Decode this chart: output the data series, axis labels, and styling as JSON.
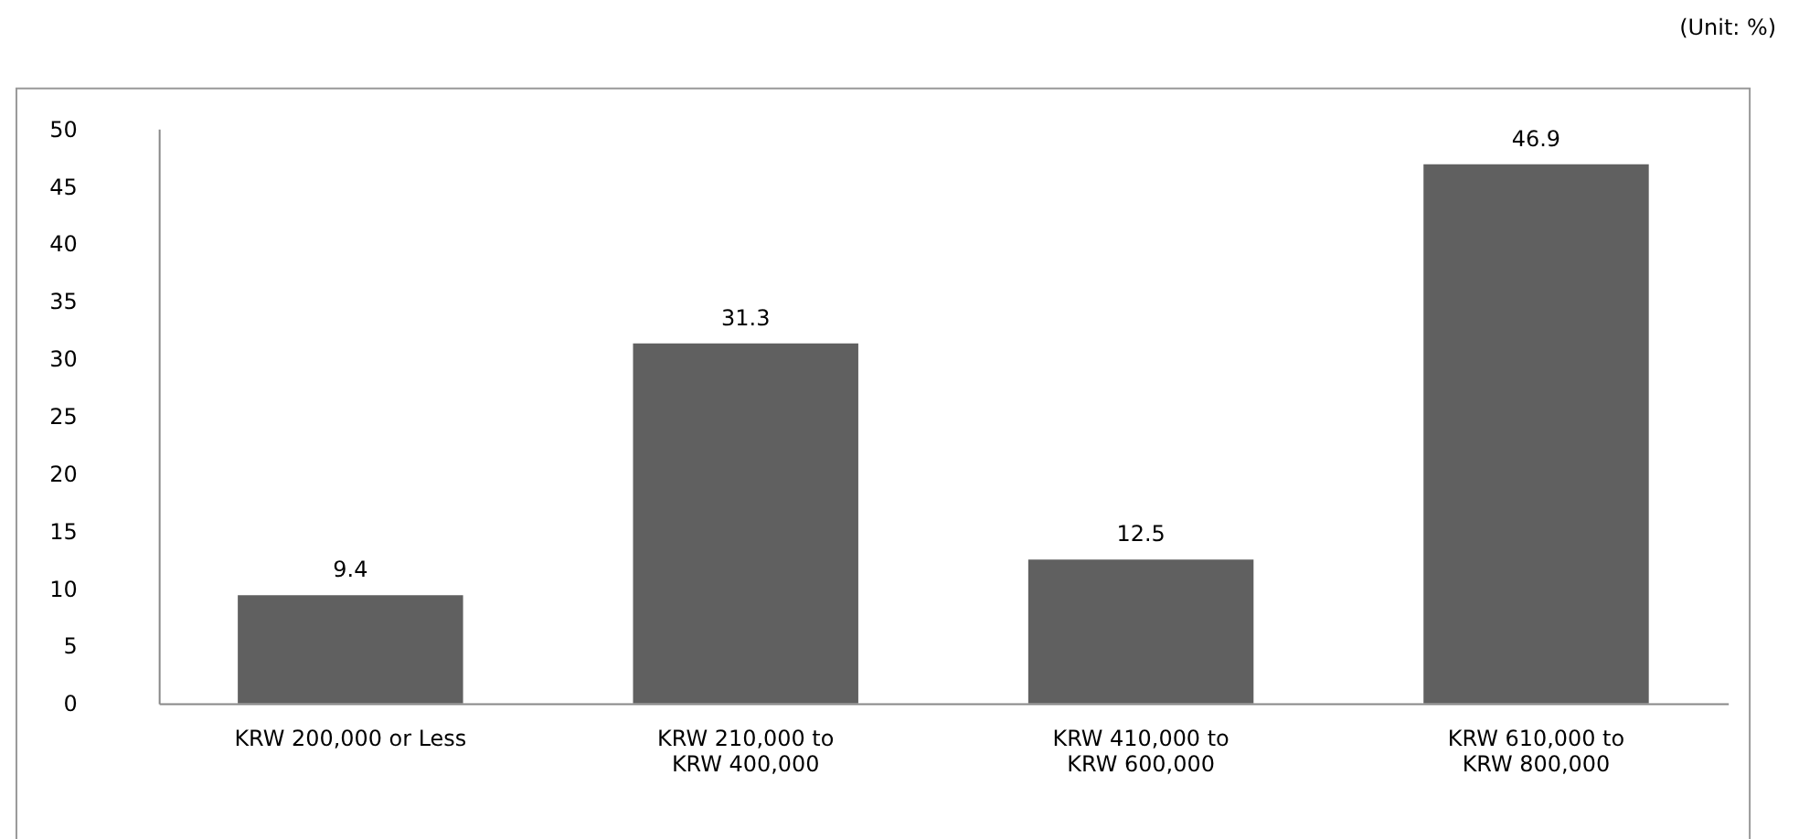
{
  "chart_data": {
    "type": "bar",
    "annotations": [
      "(Unit: %)"
    ],
    "categories": [
      "KRW 200,000 or Less",
      "KRW 210,000 to\nKRW 400,000",
      "KRW 410,000 to\nKRW 600,000",
      "KRW 610,000 to\nKRW 800,000"
    ],
    "values": [
      9.4,
      31.3,
      12.5,
      46.9
    ],
    "color": "#606060",
    "data_labels": true,
    "ylim": [
      0,
      50
    ],
    "yticks": [
      0,
      5,
      10,
      15,
      20,
      25,
      30,
      35,
      40,
      45,
      50
    ],
    "grid": false
  }
}
